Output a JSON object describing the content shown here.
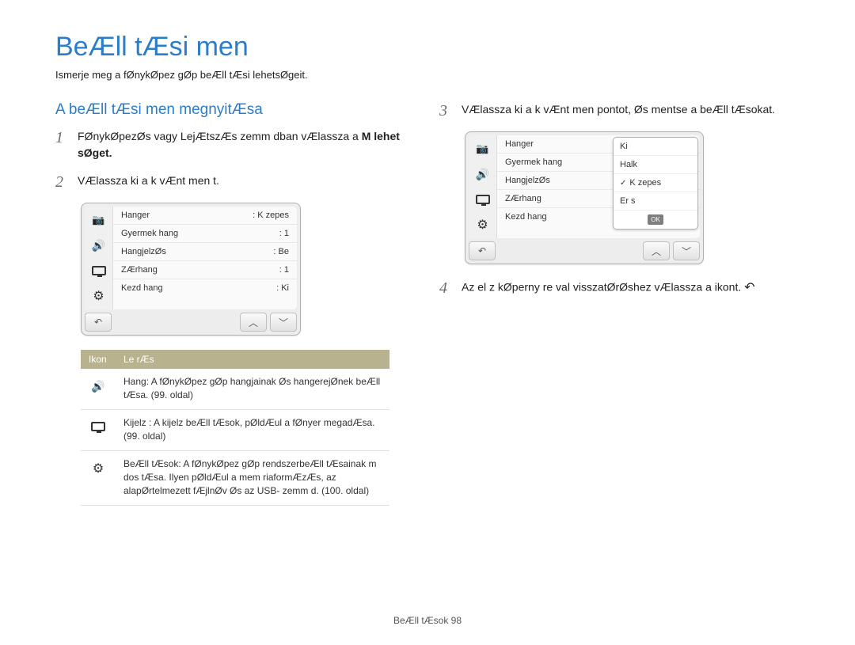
{
  "title": "BeÆll tÆsi men",
  "subtitle": "Ismerje meg a fØnykØpez gØp beÆll tÆsi lehetsØgeit.",
  "section_heading": "A beÆll tÆsi men  megnyitÆsa",
  "steps_left": [
    {
      "num": "1",
      "text": "FØnykØpezØs vagy LejÆtszÆs  zemm dban vÆlassza a ",
      "bold_suffix": "M       lehet sØget."
    },
    {
      "num": "2",
      "text": "VÆlassza ki a k vÆnt men t."
    }
  ],
  "menu1": {
    "rows": [
      {
        "label": "Hanger",
        "value": ": K zepes"
      },
      {
        "label": "Gyermek hang",
        "value": ": 1"
      },
      {
        "label": "HangjelzØs",
        "value": ": Be"
      },
      {
        "label": "ZÆrhang",
        "value": ": 1"
      },
      {
        "label": "Kezd  hang",
        "value": ": Ki"
      }
    ]
  },
  "desc_table": {
    "header_icon": "Ikon",
    "header_desc": "Le rÆs",
    "rows": [
      {
        "icon": "speaker",
        "text": "Hang: A fØnykØpez gØp hangjainak Øs hangerejØnek beÆll tÆsa. (99. oldal)"
      },
      {
        "icon": "display",
        "text": "Kijelz : A kijelz  beÆll tÆsok, pØldÆul a fØnyer  megadÆsa. (99. oldal)"
      },
      {
        "icon": "gear",
        "text": "BeÆll tÆsok: A fØnykØpez gØp rendszerbeÆll tÆsainak m dos tÆsa. Ilyen pØldÆul a mem riaformÆzÆs, az alapØrtelmezett fÆjlnØv Øs az USB- zemm d. (100. oldal)"
      }
    ]
  },
  "steps_right": [
    {
      "num": "3",
      "text": "VÆlassza ki a k vÆnt men pontot, Øs mentse a beÆll tÆsokat."
    },
    {
      "num": "4",
      "text": "Az el z  kØperny re val  visszatØrØshez vÆlassza a      ikont."
    }
  ],
  "menu2": {
    "left_rows": [
      "Hanger",
      "Gyermek hang",
      "HangjelzØs",
      "ZÆrhang",
      "Kezd  hang"
    ],
    "dropdown": [
      "Ki",
      "Halk",
      "K zepes",
      "Er s"
    ],
    "selected_index": 2
  },
  "footer": "BeÆll tÆsok 98",
  "colors": {
    "heading": "#2b7dc9",
    "table_header_bg": "#b8b38e",
    "body_text": "#222222"
  }
}
